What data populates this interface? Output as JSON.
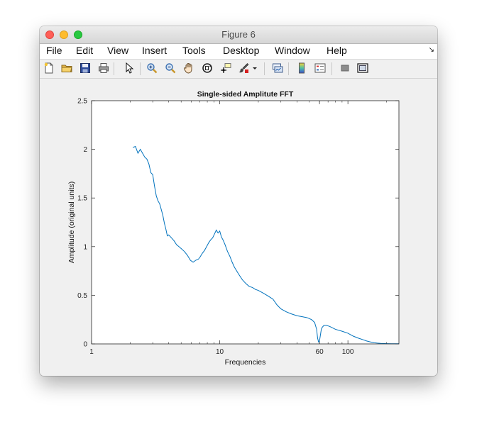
{
  "window": {
    "title": "Figure 6"
  },
  "menubar": {
    "items": [
      "File",
      "Edit",
      "View",
      "Insert",
      "Tools",
      "Desktop",
      "Window",
      "Help"
    ],
    "overflow_icon": "corner-arrow-icon"
  },
  "toolbar": {
    "buttons": [
      {
        "name": "new-figure-button",
        "icon": "new-file-icon"
      },
      {
        "name": "open-file-button",
        "icon": "folder-icon"
      },
      {
        "name": "save-button",
        "icon": "save-icon"
      },
      {
        "name": "print-button",
        "icon": "printer-icon"
      },
      {
        "name": "select-button",
        "icon": "pointer-icon"
      },
      {
        "name": "zoom-in-button",
        "icon": "zoom-in-icon"
      },
      {
        "name": "zoom-out-button",
        "icon": "zoom-out-icon"
      },
      {
        "name": "pan-button",
        "icon": "hand-icon"
      },
      {
        "name": "rotate-3d-button",
        "icon": "rotate-icon"
      },
      {
        "name": "data-cursor-button",
        "icon": "data-cursor-icon"
      },
      {
        "name": "brush-button",
        "icon": "brush-icon"
      },
      {
        "name": "brush-menu-button",
        "icon": "dropdown-arrow-icon"
      },
      {
        "name": "link-plot-button",
        "icon": "link-plot-icon"
      },
      {
        "name": "colorbar-button",
        "icon": "colorbar-icon"
      },
      {
        "name": "legend-button",
        "icon": "legend-icon"
      },
      {
        "name": "hide-plot-tools-button",
        "icon": "hide-tools-icon"
      },
      {
        "name": "show-plot-tools-button",
        "icon": "show-tools-icon"
      }
    ]
  },
  "chart_data": {
    "type": "line",
    "title": "Single-sided Amplitute FFT",
    "xlabel": "Frequencies",
    "ylabel": "Amplitude (original units)",
    "xscale": "log",
    "xlim": [
      1,
      250
    ],
    "ylim": [
      0,
      2.5
    ],
    "xticks": [
      1,
      10,
      60,
      100
    ],
    "xtick_labels": [
      "1",
      "10",
      "60",
      "100"
    ],
    "yticks": [
      0,
      0.5,
      1,
      1.5,
      2,
      2.5
    ],
    "ytick_labels": [
      "0",
      "0.5",
      "1",
      "1.5",
      "2",
      "2.5"
    ],
    "grid": false,
    "line_color": "#0072bd",
    "series": [
      {
        "x": [
          2.1,
          2.2,
          2.3,
          2.4,
          2.5,
          2.6,
          2.7,
          2.8,
          2.9,
          3.0,
          3.1,
          3.2,
          3.3,
          3.4,
          3.5,
          3.6,
          3.7,
          3.8,
          3.9,
          4.0,
          4.2,
          4.4,
          4.6,
          4.8,
          5.0,
          5.3,
          5.6,
          5.9,
          6.2,
          6.5,
          6.8,
          7.0,
          7.3,
          7.6,
          7.9,
          8.2,
          8.5,
          8.8,
          9.1,
          9.4,
          9.7,
          10.0,
          10.3,
          10.6,
          11.0,
          11.5,
          12,
          12.5,
          13,
          14,
          15,
          16,
          17,
          18,
          19,
          20,
          22,
          24,
          26,
          28,
          30,
          33,
          36,
          40,
          44,
          48,
          52,
          55,
          57,
          58,
          59,
          60,
          61,
          62,
          63,
          65,
          68,
          72,
          80,
          90,
          100,
          110,
          120,
          130,
          140,
          150,
          160,
          170,
          180,
          200,
          220,
          250
        ],
        "y": [
          2.02,
          2.03,
          1.96,
          2.0,
          1.96,
          1.92,
          1.9,
          1.85,
          1.76,
          1.74,
          1.62,
          1.52,
          1.47,
          1.44,
          1.38,
          1.32,
          1.24,
          1.18,
          1.11,
          1.12,
          1.09,
          1.06,
          1.02,
          1.0,
          0.98,
          0.95,
          0.91,
          0.86,
          0.84,
          0.86,
          0.87,
          0.89,
          0.93,
          0.96,
          1.0,
          1.04,
          1.07,
          1.09,
          1.13,
          1.17,
          1.14,
          1.16,
          1.1,
          1.07,
          1.02,
          0.95,
          0.9,
          0.84,
          0.79,
          0.72,
          0.66,
          0.62,
          0.59,
          0.58,
          0.56,
          0.55,
          0.52,
          0.49,
          0.46,
          0.4,
          0.36,
          0.33,
          0.31,
          0.29,
          0.28,
          0.27,
          0.25,
          0.22,
          0.15,
          0.06,
          0.02,
          0.03,
          0.09,
          0.15,
          0.17,
          0.19,
          0.19,
          0.18,
          0.15,
          0.13,
          0.11,
          0.08,
          0.06,
          0.045,
          0.03,
          0.02,
          0.012,
          0.008,
          0.005,
          0.003,
          0.002,
          0.002
        ]
      }
    ]
  }
}
